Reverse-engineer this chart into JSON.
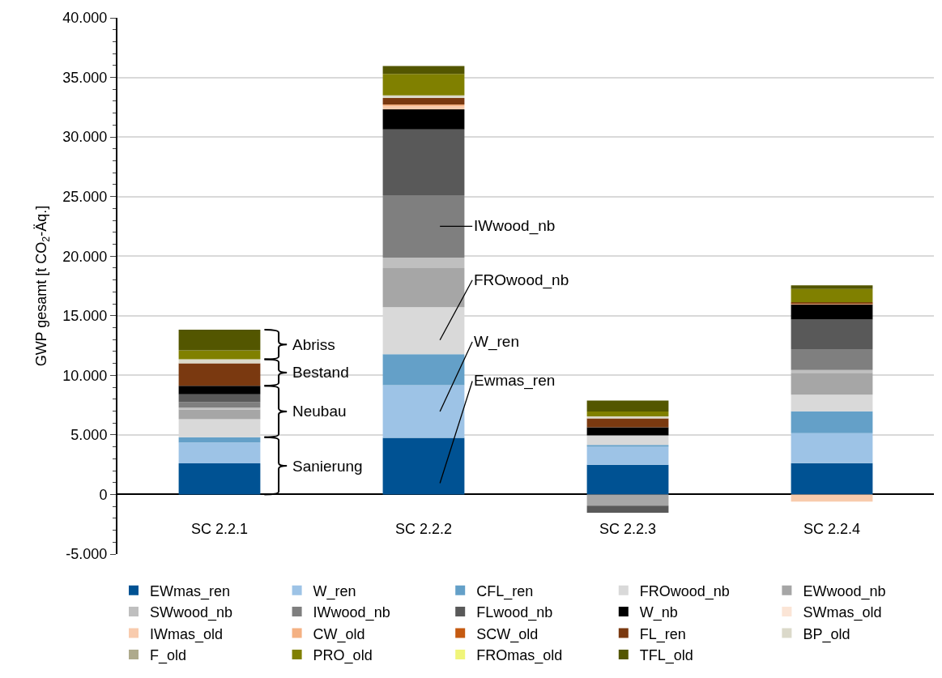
{
  "chart_data": {
    "type": "bar",
    "stacked": true,
    "ylabel": "GWP gesamt [t CO$_{2}$-Äq.]",
    "categories": [
      "SC 2.2.1",
      "SC 2.2.2",
      "SC 2.2.3",
      "SC 2.2.4"
    ],
    "series": [
      {
        "name": "EWmas_ren",
        "color": "#005293",
        "values": [
          2610,
          4750,
          2500,
          2630
        ]
      },
      {
        "name": "W_ren",
        "color": "#9dc3e6",
        "values": [
          1750,
          4420,
          1510,
          2520
        ]
      },
      {
        "name": "CFL_ren",
        "color": "#64a0c8",
        "values": [
          450,
          2610,
          150,
          1830
        ]
      },
      {
        "name": "FROwood_nb",
        "color": "#d9d9d9",
        "values": [
          1510,
          3930,
          800,
          1400
        ]
      },
      {
        "name": "EWwood_nb",
        "color": "#a6a6a6",
        "values": [
          820,
          3280,
          -930,
          1830
        ]
      },
      {
        "name": "SWwood_nb",
        "color": "#bfbfbf",
        "values": [
          150,
          890,
          null,
          240
        ]
      },
      {
        "name": "IWwood_nb",
        "color": "#7f7f7f",
        "values": [
          470,
          5240,
          null,
          1750
        ]
      },
      {
        "name": "FLwood_nb",
        "color": "#595959",
        "values": [
          650,
          5520,
          -600,
          2480
        ]
      },
      {
        "name": "W_nb",
        "color": "#000000",
        "values": [
          710,
          1680,
          670,
          1290
        ]
      },
      {
        "name": "SWmas_old",
        "color": "#fbe5d6",
        "values": [
          null,
          null,
          null,
          null
        ]
      },
      {
        "name": "IWmas_old",
        "color": "#f8cbad",
        "values": [
          null,
          250,
          null,
          -600
        ]
      },
      {
        "name": "CW_old",
        "color": "#f4b183",
        "values": [
          null,
          150,
          null,
          80
        ]
      },
      {
        "name": "SCW_old",
        "color": "#c55a11",
        "values": [
          null,
          null,
          null,
          null
        ]
      },
      {
        "name": "FL_ren",
        "color": "#7a3910",
        "values": [
          1880,
          550,
          760,
          70
        ]
      },
      {
        "name": "BP_old",
        "color": "#dbd9ca",
        "values": [
          340,
          220,
          170,
          null
        ]
      },
      {
        "name": "F_old",
        "color": "#aeaa8c",
        "values": [
          null,
          null,
          null,
          null
        ]
      },
      {
        "name": "PRO_old",
        "color": "#808000",
        "values": [
          760,
          1810,
          410,
          1130
        ]
      },
      {
        "name": "FROmas_old",
        "color": "#f0f57a",
        "values": [
          null,
          null,
          null,
          null
        ]
      },
      {
        "name": "TFL_old",
        "color": "#535600",
        "values": [
          1730,
          650,
          910,
          300
        ]
      }
    ],
    "ylim": [
      -5000,
      40000
    ],
    "yticks": [
      {
        "value": -5000,
        "label": "-5.000"
      },
      0,
      {
        "value": 5000,
        "label": "5.000"
      },
      {
        "value": 10000,
        "label": "10.000"
      },
      {
        "value": 15000,
        "label": "15.000"
      },
      {
        "value": 20000,
        "label": "20.000"
      },
      {
        "value": 25000,
        "label": "25.000"
      },
      {
        "value": 30000,
        "label": "30.000"
      },
      {
        "value": 35000,
        "label": "35.000"
      },
      {
        "value": 40000,
        "label": "40.000"
      }
    ],
    "grid": "y",
    "legend": "bottom",
    "annotations": [
      "Sanierung",
      "Neubau",
      "Bestand",
      "Abriss",
      "IWwood_nb",
      "FROwood_nb",
      "W_ren",
      "Ewmas_ren"
    ]
  }
}
